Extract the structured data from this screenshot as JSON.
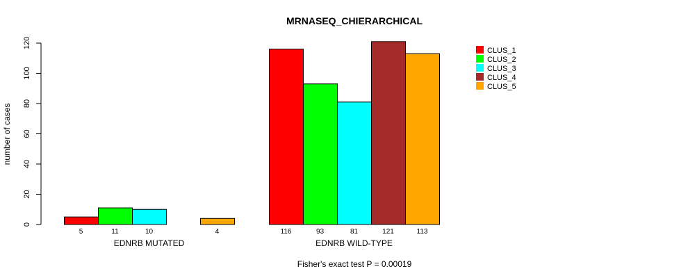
{
  "chart_data": {
    "type": "bar",
    "title": "MRNASEQ_CHIERARCHICAL",
    "ylabel": "number of cases",
    "xlabel": "",
    "ylim": [
      0,
      120
    ],
    "yticks": [
      0,
      20,
      40,
      60,
      80,
      100,
      120
    ],
    "categories": [
      "EDNRB MUTATED",
      "EDNRB WILD-TYPE"
    ],
    "series": [
      {
        "name": "CLUS_1",
        "color": "#ff0000",
        "values": [
          5,
          116
        ]
      },
      {
        "name": "CLUS_2",
        "color": "#00ff00",
        "values": [
          11,
          93
        ]
      },
      {
        "name": "CLUS_3",
        "color": "#00ffff",
        "values": [
          10,
          81
        ]
      },
      {
        "name": "CLUS_4",
        "color": "#a52a2a",
        "values": [
          0,
          121
        ]
      },
      {
        "name": "CLUS_5",
        "color": "#ffa500",
        "values": [
          4,
          113
        ]
      }
    ],
    "value_labels": [
      [
        "5",
        "11",
        "10",
        "",
        "4"
      ],
      [
        "116",
        "93",
        "81",
        "121",
        "113"
      ]
    ],
    "legend_position": "top-right",
    "footnote": "Fisher's exact test P = 0.00019"
  }
}
